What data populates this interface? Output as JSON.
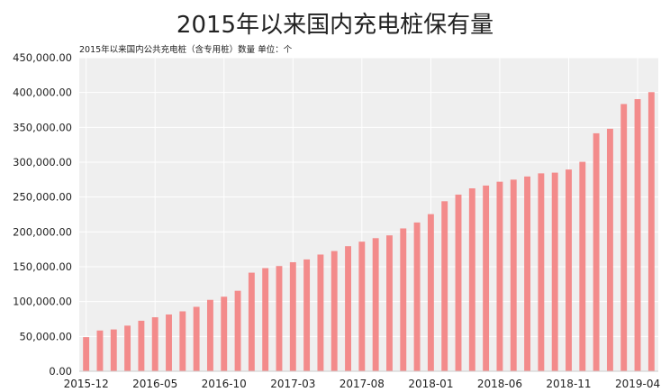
{
  "chart_data": {
    "type": "bar",
    "title": "2015年以来国内充电桩保有量",
    "subtitle": "2015年以来国内公共充电桩（含专用桩）数量  单位：个",
    "categories": [
      "2015-12",
      "2016-01",
      "2016-02",
      "2016-03",
      "2016-04",
      "2016-05",
      "2016-06",
      "2016-07",
      "2016-08",
      "2016-09",
      "2016-10",
      "2016-11",
      "2016-12",
      "2017-01",
      "2017-02",
      "2017-03",
      "2017-04",
      "2017-05",
      "2017-06",
      "2017-07",
      "2017-08",
      "2017-09",
      "2017-10",
      "2017-11",
      "2017-12",
      "2018-01",
      "2018-02",
      "2018-03",
      "2018-04",
      "2018-05",
      "2018-06",
      "2018-07",
      "2018-08",
      "2018-09",
      "2018-10",
      "2018-11",
      "2018-12",
      "2019-01",
      "2019-02",
      "2019-03",
      "2019-04",
      "2019-05"
    ],
    "values": [
      49000,
      58500,
      60000,
      65500,
      72500,
      77500,
      81500,
      86000,
      92500,
      102500,
      107000,
      115500,
      141500,
      148000,
      151000,
      156500,
      160500,
      167500,
      172500,
      179500,
      186000,
      191000,
      195000,
      205000,
      213500,
      225500,
      244000,
      253500,
      262500,
      266500,
      272000,
      275000,
      279500,
      284000,
      285000,
      289500,
      300500,
      341500,
      348000,
      383500,
      390500,
      400500
    ],
    "x_tick_labels": [
      "2015-12",
      "2016-05",
      "2016-10",
      "2017-03",
      "2017-08",
      "2018-01",
      "2018-06",
      "2018-11",
      "2019-04"
    ],
    "x_tick_every": 5,
    "y_tick_labels": [
      "0.00",
      "50,000.00",
      "100,000.00",
      "150,000.00",
      "200,000.00",
      "250,000.00",
      "300,000.00",
      "350,000.00",
      "400,000.00",
      "450,000.00"
    ],
    "ylim": [
      0,
      450000
    ],
    "y_step": 50000,
    "grid": true,
    "colors": {
      "bar": "#f38b8b",
      "plot_bg": "#efefef",
      "grid": "#ffffff",
      "text": "#222222"
    }
  }
}
